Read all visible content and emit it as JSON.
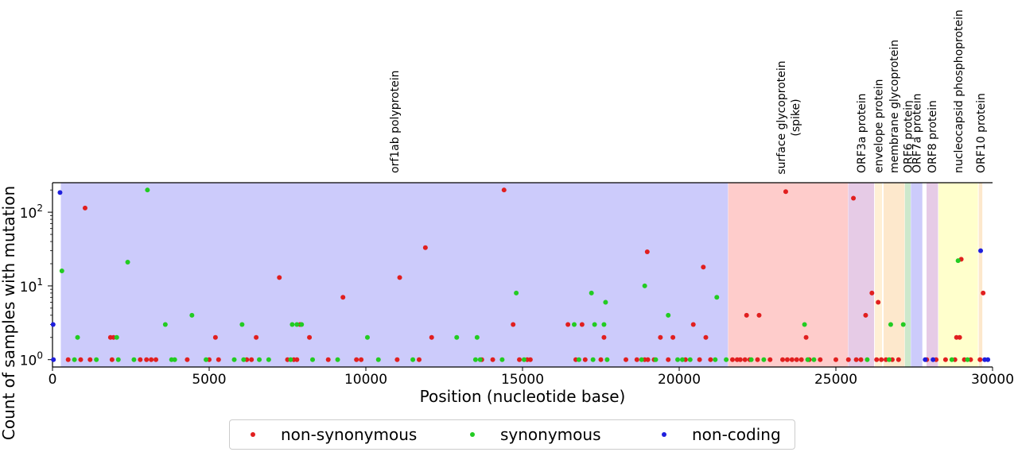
{
  "chart_data": {
    "type": "scatter",
    "title": "",
    "xlabel": "Position (nucleotide base)",
    "ylabel": "Count of samples with mutation",
    "xlim": [
      0,
      30000
    ],
    "ylim_log10": [
      -0.1,
      2.4
    ],
    "yscale": "log",
    "x_ticks": [
      {
        "value": 0,
        "label": "0"
      },
      {
        "value": 5000,
        "label": "5000"
      },
      {
        "value": 10000,
        "label": "10000"
      },
      {
        "value": 15000,
        "label": "15000"
      },
      {
        "value": 20000,
        "label": "20000"
      },
      {
        "value": 25000,
        "label": "25000"
      },
      {
        "value": 30000,
        "label": "30000"
      }
    ],
    "y_ticks": [
      {
        "value": 1,
        "base": "10",
        "exp": "0"
      },
      {
        "value": 10,
        "base": "10",
        "exp": "1"
      },
      {
        "value": 100,
        "base": "10",
        "exp": "2"
      }
    ],
    "genes": [
      {
        "label": [
          "orf1ab polyprotein"
        ],
        "start": 266,
        "end": 21555,
        "color": "#cccbfb"
      },
      {
        "label": [
          "surface glycoprotein",
          "(spike)"
        ],
        "start": 21563,
        "end": 25384,
        "color": "#fecccb"
      },
      {
        "label": [
          "ORF3a protein"
        ],
        "start": 25393,
        "end": 26220,
        "color": "#e6cbe6"
      },
      {
        "label": [
          "envelope protein"
        ],
        "start": 26245,
        "end": 26472,
        "color": "#fff0d5"
      },
      {
        "label": [
          "membrane glycoprotein"
        ],
        "start": 26523,
        "end": 27191,
        "color": "#fde8cc"
      },
      {
        "label": [
          "ORF6 protein"
        ],
        "start": 27202,
        "end": 27387,
        "color": "#cce8cc"
      },
      {
        "label": [
          "ORF7a protein"
        ],
        "start": 27394,
        "end": 27759,
        "color": "#cccbfb"
      },
      {
        "label": [
          "ORF8 protein"
        ],
        "start": 27894,
        "end": 28259,
        "color": "#e6cbe6"
      },
      {
        "label": [
          "nucleocapsid phosphoprotein"
        ],
        "start": 28274,
        "end": 29533,
        "color": "#ffffcc"
      },
      {
        "label": [
          "ORF10 protein"
        ],
        "start": 29558,
        "end": 29674,
        "color": "#fde8cc"
      }
    ],
    "series": [
      {
        "name": "non-synonymous",
        "color": "#e11f1f",
        "points": [
          [
            1040,
            114
          ],
          [
            7240,
            13
          ],
          [
            9270,
            7
          ],
          [
            11080,
            13
          ],
          [
            11900,
            33
          ],
          [
            14410,
            200
          ],
          [
            18980,
            29
          ],
          [
            20770,
            18
          ],
          [
            23400,
            190
          ],
          [
            25560,
            155
          ],
          [
            1850,
            2
          ],
          [
            1950,
            2
          ],
          [
            5200,
            2
          ],
          [
            6500,
            2
          ],
          [
            7900,
            3
          ],
          [
            8200,
            2
          ],
          [
            12100,
            2
          ],
          [
            14700,
            3
          ],
          [
            16450,
            3
          ],
          [
            16900,
            3
          ],
          [
            17600,
            2
          ],
          [
            19400,
            2
          ],
          [
            19800,
            2
          ],
          [
            20450,
            3
          ],
          [
            20850,
            2
          ],
          [
            22150,
            4
          ],
          [
            22550,
            4
          ],
          [
            24050,
            2
          ],
          [
            25950,
            4
          ],
          [
            26350,
            6
          ],
          [
            26150,
            8
          ],
          [
            28850,
            2
          ],
          [
            28950,
            2
          ],
          [
            29700,
            8
          ],
          [
            29000,
            23
          ],
          [
            500,
            1
          ],
          [
            900,
            1
          ],
          [
            1200,
            1
          ],
          [
            1900,
            1
          ],
          [
            2800,
            1
          ],
          [
            3000,
            1
          ],
          [
            3150,
            1
          ],
          [
            3300,
            1
          ],
          [
            4300,
            1
          ],
          [
            5000,
            1
          ],
          [
            5300,
            1
          ],
          [
            6200,
            1
          ],
          [
            6350,
            1
          ],
          [
            7500,
            1
          ],
          [
            7700,
            1
          ],
          [
            7800,
            1
          ],
          [
            8800,
            1
          ],
          [
            9700,
            1
          ],
          [
            9850,
            1
          ],
          [
            11000,
            1
          ],
          [
            11700,
            1
          ],
          [
            13700,
            1
          ],
          [
            14050,
            1
          ],
          [
            14900,
            1
          ],
          [
            15150,
            1
          ],
          [
            15250,
            1
          ],
          [
            16700,
            1
          ],
          [
            17000,
            1
          ],
          [
            17500,
            1
          ],
          [
            18300,
            1
          ],
          [
            18650,
            1
          ],
          [
            18900,
            1
          ],
          [
            19000,
            1
          ],
          [
            19200,
            1
          ],
          [
            19650,
            1
          ],
          [
            20200,
            1
          ],
          [
            20650,
            1
          ],
          [
            21000,
            1
          ],
          [
            21700,
            1
          ],
          [
            21850,
            1
          ],
          [
            21950,
            1
          ],
          [
            22100,
            1
          ],
          [
            22250,
            1
          ],
          [
            22500,
            1
          ],
          [
            22900,
            1
          ],
          [
            23300,
            1
          ],
          [
            23450,
            1
          ],
          [
            23600,
            1
          ],
          [
            23750,
            1
          ],
          [
            23900,
            1
          ],
          [
            24150,
            1
          ],
          [
            24500,
            1
          ],
          [
            25000,
            1
          ],
          [
            25400,
            1
          ],
          [
            25650,
            1
          ],
          [
            25800,
            1
          ],
          [
            26300,
            1
          ],
          [
            26450,
            1
          ],
          [
            26600,
            1
          ],
          [
            26800,
            1
          ],
          [
            27000,
            1
          ],
          [
            27900,
            1
          ],
          [
            28200,
            1
          ],
          [
            28500,
            1
          ],
          [
            28800,
            1
          ],
          [
            29100,
            1
          ],
          [
            29300,
            1
          ],
          [
            29600,
            1
          ]
        ]
      },
      {
        "name": "synonymous",
        "color": "#22cc22",
        "points": [
          [
            3030,
            200
          ],
          [
            300,
            16
          ],
          [
            2400,
            21
          ],
          [
            4450,
            4
          ],
          [
            3600,
            3
          ],
          [
            6050,
            3
          ],
          [
            7650,
            3
          ],
          [
            7800,
            3
          ],
          [
            7950,
            3
          ],
          [
            10050,
            2
          ],
          [
            12900,
            2
          ],
          [
            13550,
            2
          ],
          [
            14800,
            8
          ],
          [
            16650,
            3
          ],
          [
            17200,
            8
          ],
          [
            17300,
            3
          ],
          [
            17650,
            6
          ],
          [
            17600,
            3
          ],
          [
            18900,
            10
          ],
          [
            19650,
            4
          ],
          [
            21200,
            7
          ],
          [
            24000,
            3
          ],
          [
            26750,
            3
          ],
          [
            27150,
            3
          ],
          [
            28900,
            22
          ],
          [
            800,
            2
          ],
          [
            2050,
            2
          ],
          [
            700,
            1
          ],
          [
            1400,
            1
          ],
          [
            2100,
            1
          ],
          [
            2600,
            1
          ],
          [
            3800,
            1
          ],
          [
            3900,
            1
          ],
          [
            4900,
            1
          ],
          [
            5800,
            1
          ],
          [
            6100,
            1
          ],
          [
            6600,
            1
          ],
          [
            6900,
            1
          ],
          [
            7600,
            1
          ],
          [
            8300,
            1
          ],
          [
            9100,
            1
          ],
          [
            10400,
            1
          ],
          [
            11500,
            1
          ],
          [
            13500,
            1
          ],
          [
            13650,
            1
          ],
          [
            14350,
            1
          ],
          [
            15050,
            1
          ],
          [
            16800,
            1
          ],
          [
            17250,
            1
          ],
          [
            17700,
            1
          ],
          [
            18800,
            1
          ],
          [
            19250,
            1
          ],
          [
            19950,
            1
          ],
          [
            20100,
            1
          ],
          [
            20350,
            1
          ],
          [
            21150,
            1
          ],
          [
            21500,
            1
          ],
          [
            22300,
            1
          ],
          [
            22700,
            1
          ],
          [
            24100,
            1
          ],
          [
            24300,
            1
          ],
          [
            26000,
            1
          ],
          [
            26700,
            1
          ],
          [
            28700,
            1
          ],
          [
            29200,
            1
          ]
        ]
      },
      {
        "name": "non-coding",
        "color": "#1f1fdd",
        "points": [
          [
            240,
            185
          ],
          [
            20,
            3
          ],
          [
            29620,
            30
          ],
          [
            30,
            1
          ],
          [
            27850,
            1
          ],
          [
            28100,
            1
          ],
          [
            29750,
            1
          ],
          [
            29850,
            1
          ]
        ]
      }
    ],
    "legend": {
      "position": "bottom-center"
    }
  }
}
